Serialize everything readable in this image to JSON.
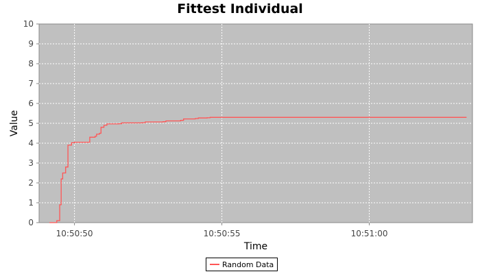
{
  "chart_data": {
    "type": "line",
    "title": "Fittest Individual",
    "xlabel": "Time",
    "ylabel": "Value",
    "ylim": [
      0,
      10
    ],
    "xlim": [
      "10:50:48.8",
      "10:51:03.5"
    ],
    "xticks": [
      "10:50:50",
      "10:50:55",
      "10:51:00"
    ],
    "yticks": [
      "0",
      "1",
      "2",
      "3",
      "4",
      "5",
      "6",
      "7",
      "8",
      "9",
      "10"
    ],
    "grid": true,
    "legend": "bottom-center",
    "series": [
      {
        "name": "Random Data",
        "color": "#ff5555",
        "x": [
          "10:50:49.15",
          "10:50:49.40",
          "10:50:49.50",
          "10:50:49.55",
          "10:50:49.60",
          "10:50:49.70",
          "10:50:49.78",
          "10:50:49.90",
          "10:50:50.00",
          "10:50:50.50",
          "10:50:50.52",
          "10:50:50.70",
          "10:50:50.75",
          "10:50:50.85",
          "10:50:50.90",
          "10:50:51.00",
          "10:50:51.10",
          "10:50:51.50",
          "10:50:51.60",
          "10:50:52.30",
          "10:50:52.40",
          "10:50:53.00",
          "10:50:53.10",
          "10:50:53.60",
          "10:50:53.70",
          "10:50:54.10",
          "10:50:54.20",
          "10:50:54.50",
          "10:50:54.60",
          "10:51:03.30"
        ],
        "values": [
          0.0,
          0.1,
          0.9,
          2.2,
          2.5,
          2.8,
          3.9,
          4.02,
          4.05,
          4.05,
          4.3,
          4.35,
          4.45,
          4.5,
          4.8,
          4.9,
          4.97,
          4.98,
          5.02,
          5.03,
          5.07,
          5.08,
          5.12,
          5.15,
          5.22,
          5.24,
          5.27,
          5.28,
          5.3,
          5.3
        ]
      }
    ]
  }
}
